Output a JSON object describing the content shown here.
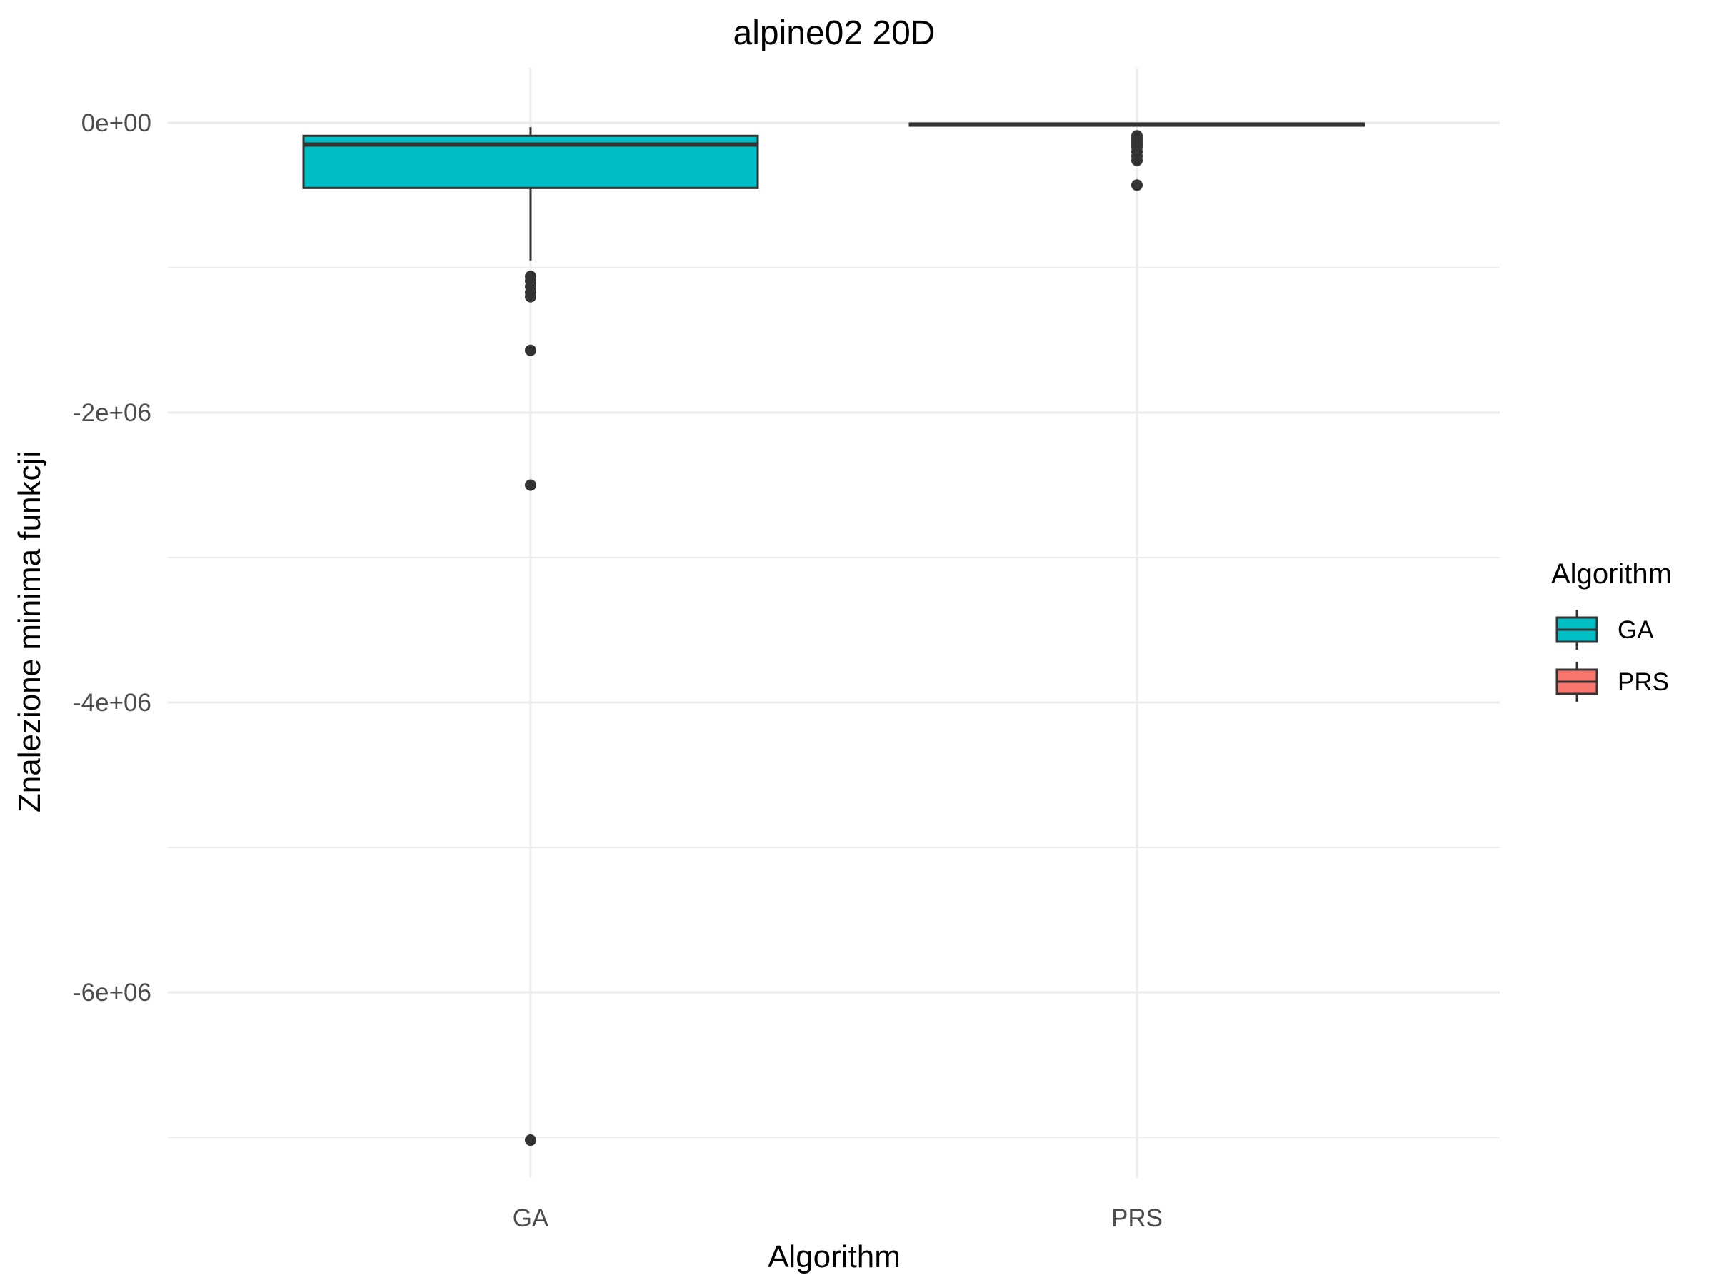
{
  "chart_data": {
    "type": "boxplot",
    "title": "alpine02 20D",
    "xlabel": "Algorithm",
    "ylabel": "Znalezione minima funkcji",
    "categories": [
      "GA",
      "PRS"
    ],
    "ylim": [
      -7250000,
      350000
    ],
    "y_ticks": [
      0,
      -2000000,
      -4000000,
      -6000000
    ],
    "y_tick_labels": [
      "0e+00",
      "-2e+06",
      "-4e+06",
      "-6e+06"
    ],
    "grid": true,
    "legend": {
      "title": "Algorithm",
      "position": "right",
      "entries": [
        {
          "label": "GA",
          "color": "#00BFC4"
        },
        {
          "label": "PRS",
          "color": "#F8766D"
        }
      ]
    },
    "series": [
      {
        "name": "GA",
        "color": "#00BFC4",
        "whisker_high": -30000,
        "q3": -90000,
        "median": -150000,
        "q1": -450000,
        "whisker_low": -950000,
        "outliers": [
          -1060000,
          -1090000,
          -1130000,
          -1170000,
          -1200000,
          -1570000,
          -2500000,
          -7020000
        ]
      },
      {
        "name": "PRS",
        "color": "#F8766D",
        "whisker_high": -5000,
        "q3": -5000,
        "median": -12000,
        "q1": -20000,
        "whisker_low": -20000,
        "outliers": [
          -90000,
          -110000,
          -130000,
          -150000,
          -170000,
          -200000,
          -230000,
          -260000,
          -430000
        ]
      }
    ]
  }
}
